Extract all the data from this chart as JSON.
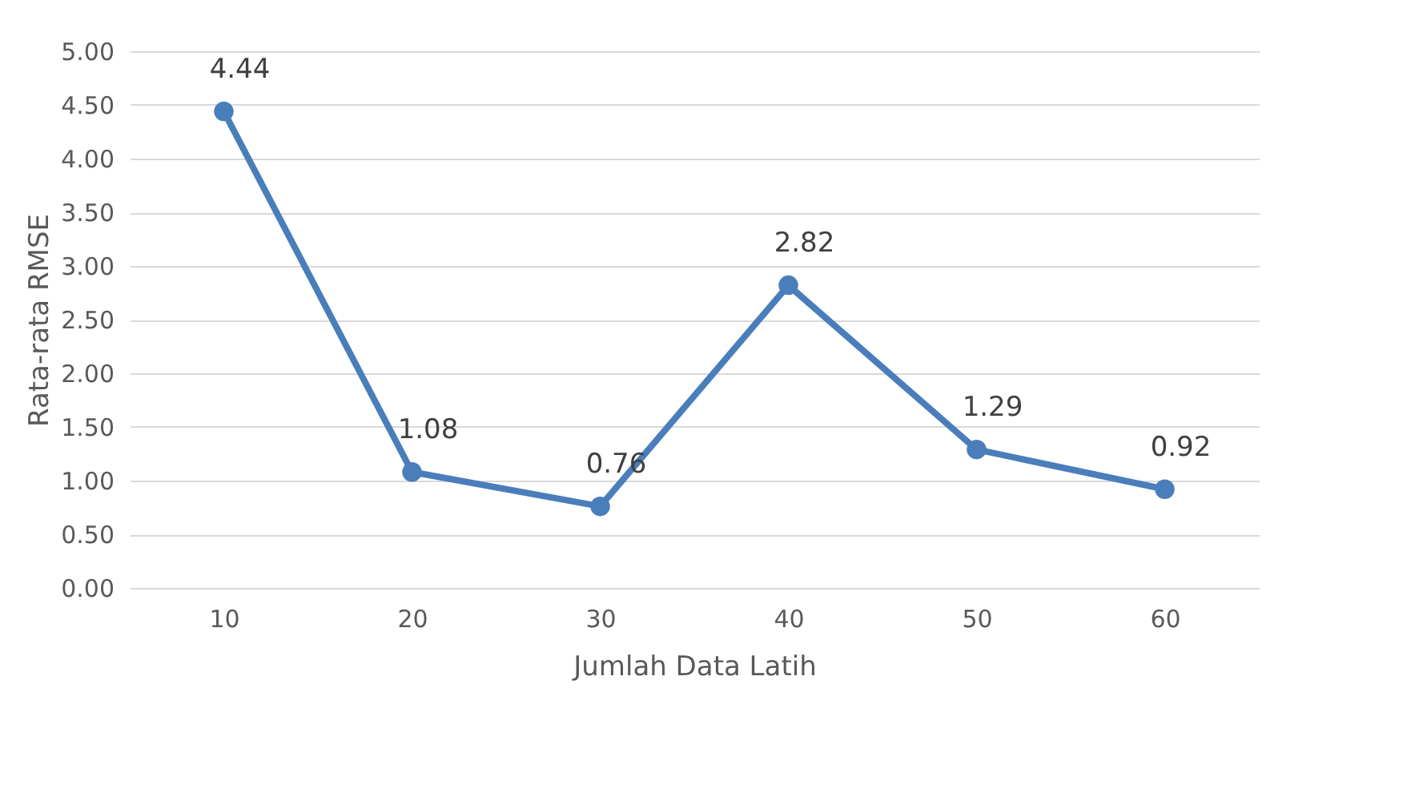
{
  "chart_data": {
    "type": "line",
    "xlabel": "Jumlah Data Latih",
    "ylabel": "Rata-rata RMSE",
    "categories": [
      "10",
      "20",
      "30",
      "40",
      "50",
      "60"
    ],
    "series": [
      {
        "color": "#4a7ebb",
        "values": [
          4.44,
          1.08,
          0.76,
          2.82,
          1.29,
          0.92
        ]
      }
    ],
    "ylim": [
      0,
      5
    ],
    "yticks": [
      {
        "value": 0,
        "label": "0.00"
      },
      {
        "value": 0.5,
        "label": "0.50"
      },
      {
        "value": 1,
        "label": "1.00"
      },
      {
        "value": 1.5,
        "label": "1.50"
      },
      {
        "value": 2,
        "label": "2.00"
      },
      {
        "value": 2.5,
        "label": "2.50"
      },
      {
        "value": 3,
        "label": "3.00"
      },
      {
        "value": 3.5,
        "label": "3.50"
      },
      {
        "value": 4,
        "label": "4.00"
      },
      {
        "value": 4.5,
        "label": "4.50"
      },
      {
        "value": 5,
        "label": "5.00"
      }
    ],
    "grid": "y",
    "marker": "circle",
    "line_style": "solid",
    "data_labels": true
  }
}
